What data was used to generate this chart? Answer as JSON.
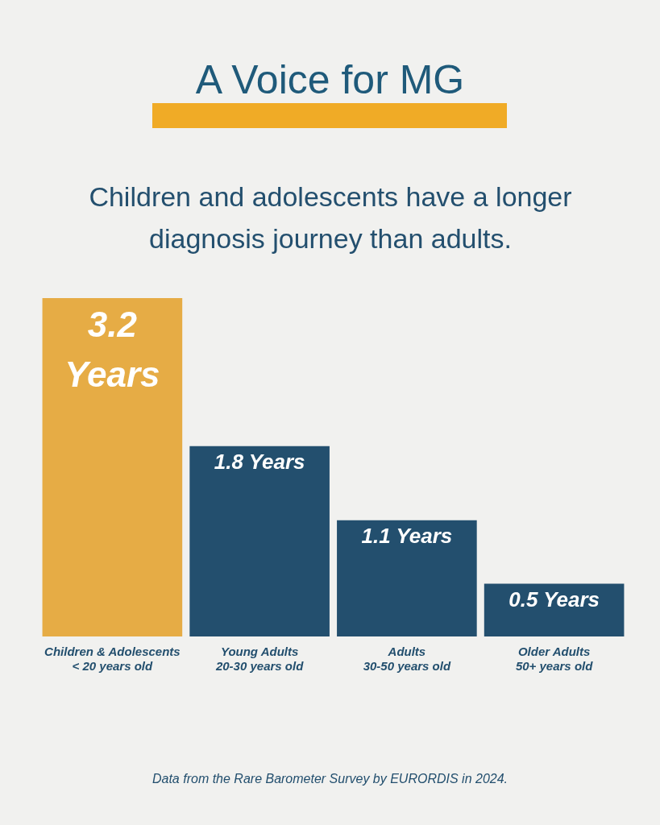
{
  "chart_data": {
    "type": "bar",
    "title": "A Voice for MG",
    "subtitle": "Children and adolescents have a longer diagnosis journey than adults.",
    "categories": [
      "Children & Adolescents\n< 20 years old",
      "Young Adults\n20-30 years old",
      "Adults\n30-50 years old",
      "Older Adults\n50+ years old"
    ],
    "values": [
      3.2,
      1.8,
      1.1,
      0.5
    ],
    "colors": [
      "#e6ac45",
      "#234f6e",
      "#234f6e",
      "#234f6e"
    ],
    "value_labels": [
      "3.2 Years",
      "1.8 Years",
      "1.1 Years",
      "0.5 Years"
    ],
    "relative": false,
    "annotations": [
      "Data from the Rare Barometer Survey by EURORDIS in 2024."
    ]
  }
}
